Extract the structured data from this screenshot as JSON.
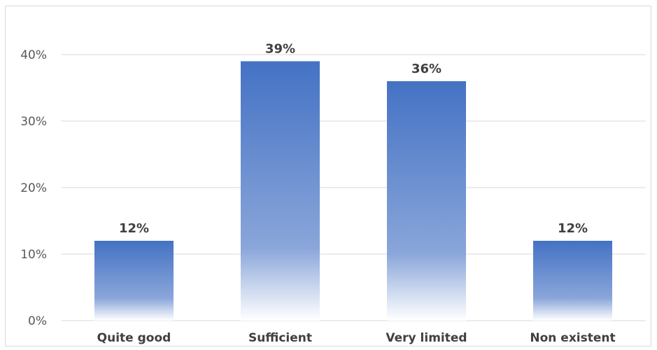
{
  "chart_data": {
    "type": "bar",
    "categories": [
      "Quite good",
      "Sufficient",
      "Very limited",
      "Non existent"
    ],
    "values": [
      12,
      39,
      36,
      12
    ],
    "value_labels": [
      "12%",
      "39%",
      "36%",
      "12%"
    ],
    "title": "",
    "xlabel": "",
    "ylabel": "",
    "ylim": [
      0,
      40
    ],
    "yticks": [
      0,
      10,
      20,
      30,
      40
    ],
    "ytick_labels": [
      "0%",
      "10%",
      "20%",
      "30%",
      "40%"
    ],
    "grid": true,
    "legend": "none",
    "colors": {
      "bar_top": "#4472c4",
      "bar_bottom": "#ffffff",
      "grid": "#d9d9d9",
      "tick_text": "#595959",
      "label_text": "#404040"
    }
  }
}
